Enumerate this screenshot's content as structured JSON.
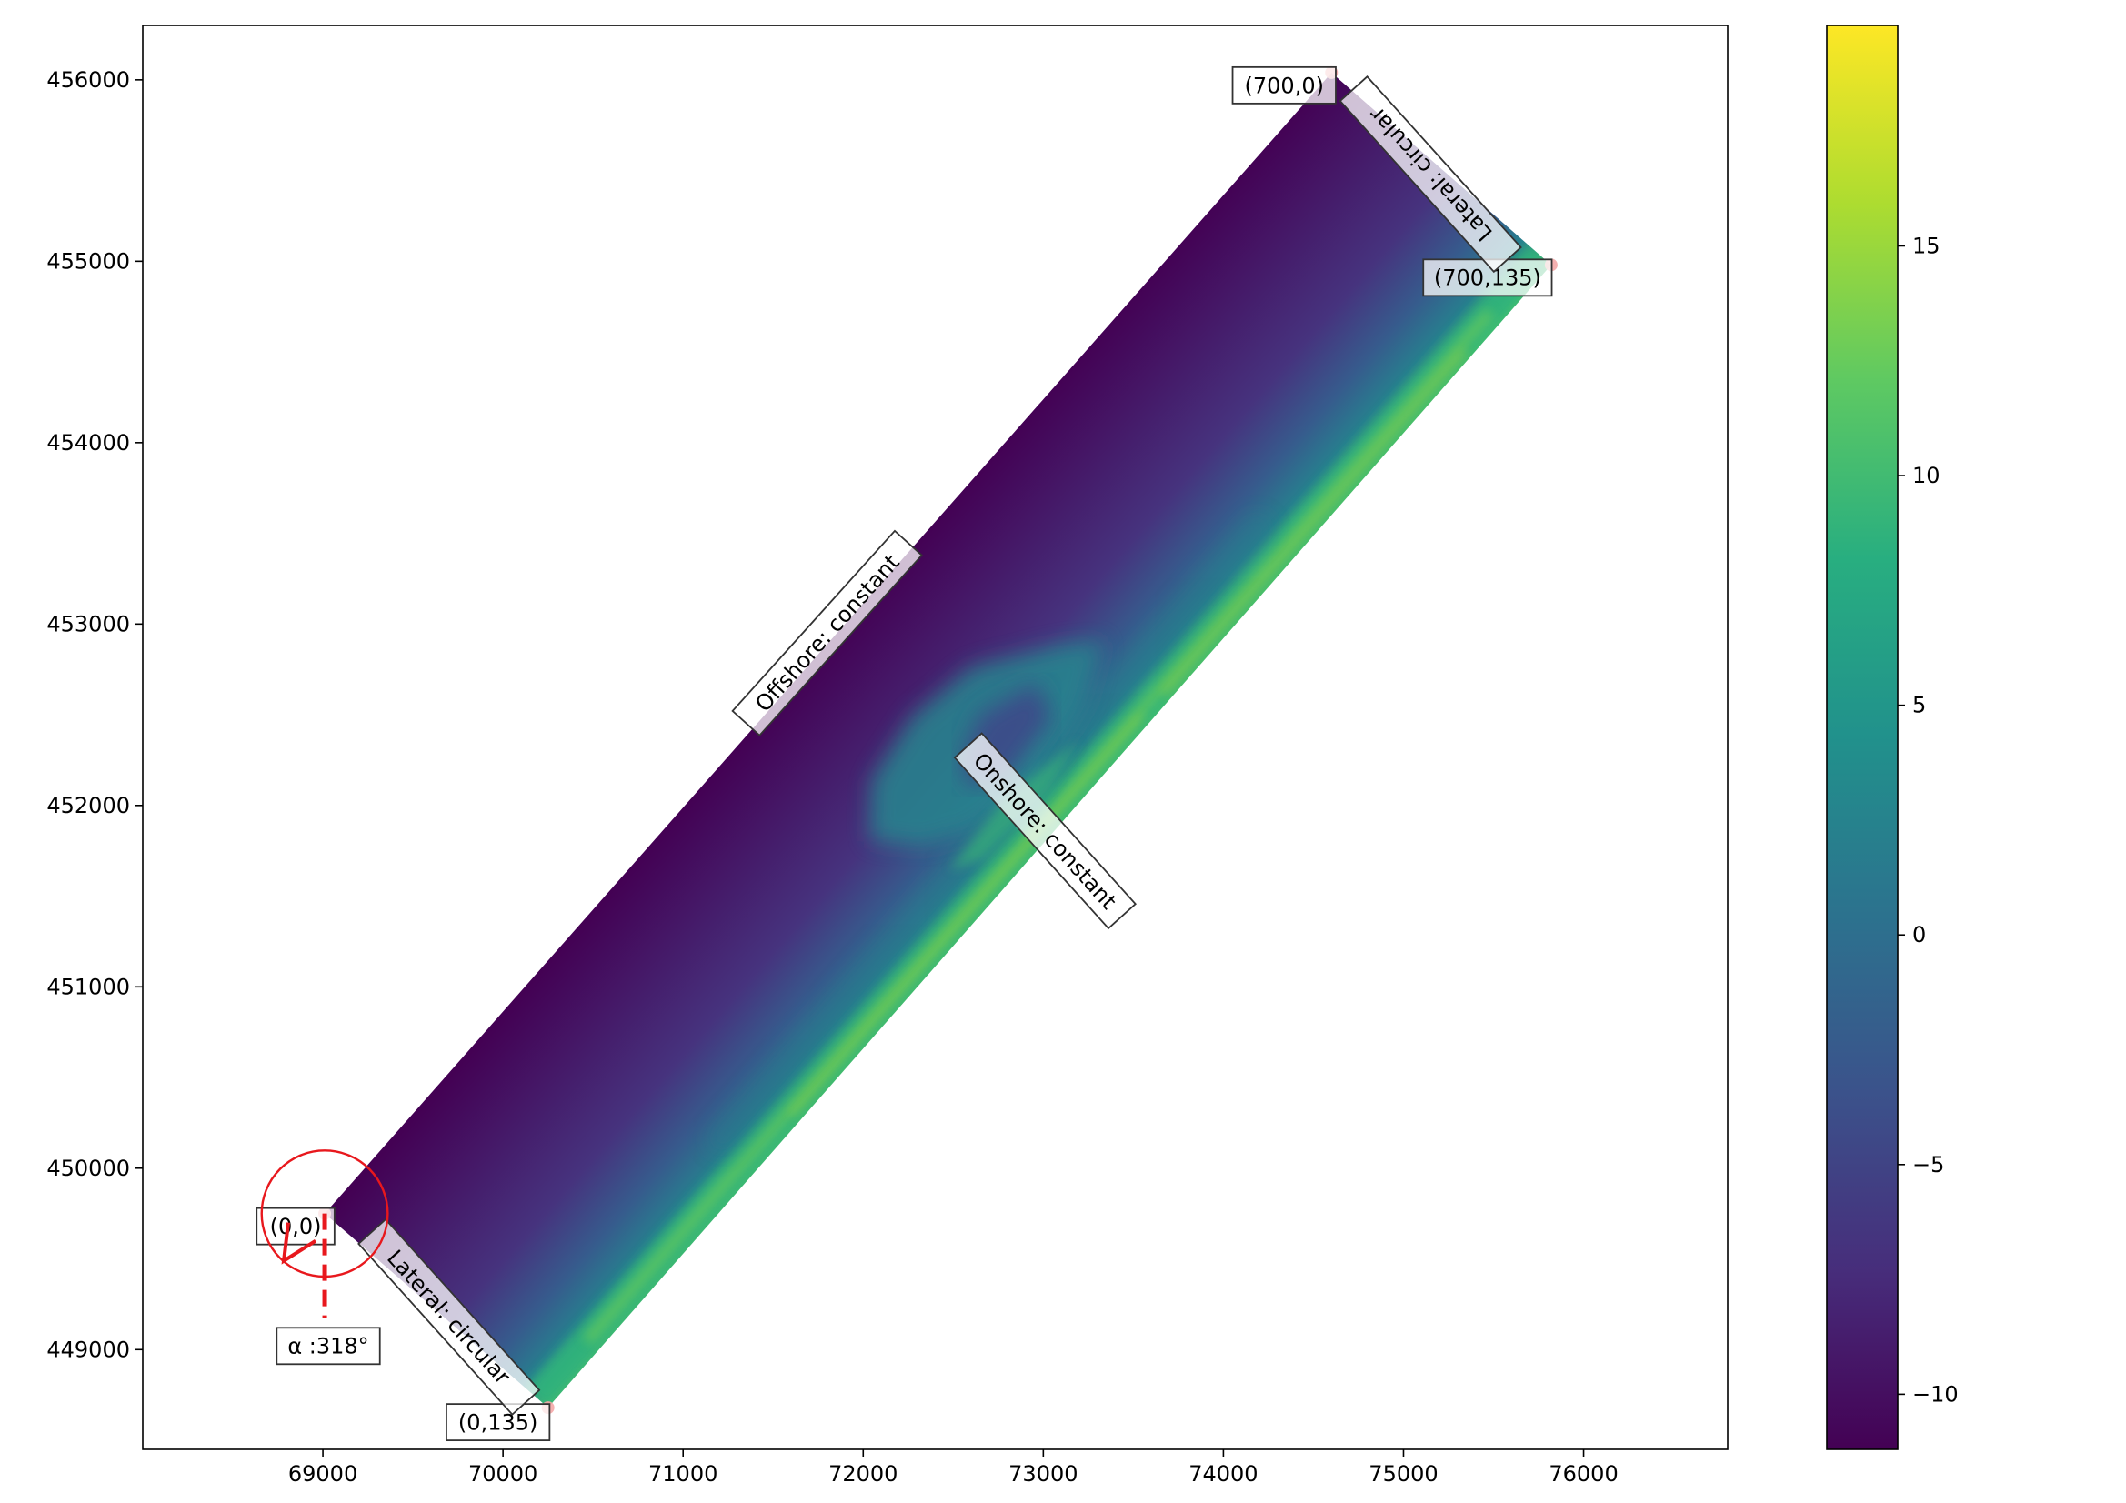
{
  "chart_data": [
    {
      "type": "heatmap",
      "title": "",
      "xlabel": "",
      "ylabel": "",
      "xlim": [
        68000,
        76800
      ],
      "ylim": [
        448450,
        456300
      ],
      "xticks": [
        69000,
        70000,
        71000,
        72000,
        73000,
        74000,
        75000,
        76000
      ],
      "yticks": [
        449000,
        450000,
        451000,
        452000,
        453000,
        454000,
        455000,
        456000
      ],
      "colormap": "viridis",
      "grid": false,
      "domain_corners": [
        {
          "label": "(0,0)",
          "x": 69010,
          "y": 449750
        },
        {
          "label": "(700,0)",
          "x": 74600,
          "y": 456040
        },
        {
          "label": "(700,135)",
          "x": 75820,
          "y": 454980
        },
        {
          "label": "(0,135)",
          "x": 70250,
          "y": 448680
        }
      ],
      "boundary_labels": [
        {
          "text": "Offshore: constant",
          "x": 71800,
          "y": 452950,
          "angle": -48
        },
        {
          "text": "Onshore: constant",
          "x": 73010,
          "y": 451860,
          "angle": 48
        },
        {
          "text": "Lateral: circular",
          "x": 69700,
          "y": 449180,
          "angle": 48
        },
        {
          "text": "Lateral: circular",
          "x": 75150,
          "y": 455480,
          "angle": 228
        }
      ],
      "angle_annotation": {
        "text": "α :318°",
        "value_deg": 318,
        "x": 69030,
        "y": 449020,
        "origin": {
          "x": 69010,
          "y": 449750
        },
        "circle_radius": 350
      },
      "colors": {
        "marker": "#f4a7a7",
        "angle": "#e8181d",
        "bbox_edge": "#333333"
      }
    },
    {
      "type": "colorbar",
      "colormap": "viridis",
      "vmin": -11.2,
      "vmax": 19.8,
      "ticks": [
        -10,
        -5,
        0,
        5,
        10,
        15
      ],
      "tick_labels": [
        "−10",
        "−5",
        "0",
        "5",
        "10",
        "15"
      ]
    }
  ]
}
